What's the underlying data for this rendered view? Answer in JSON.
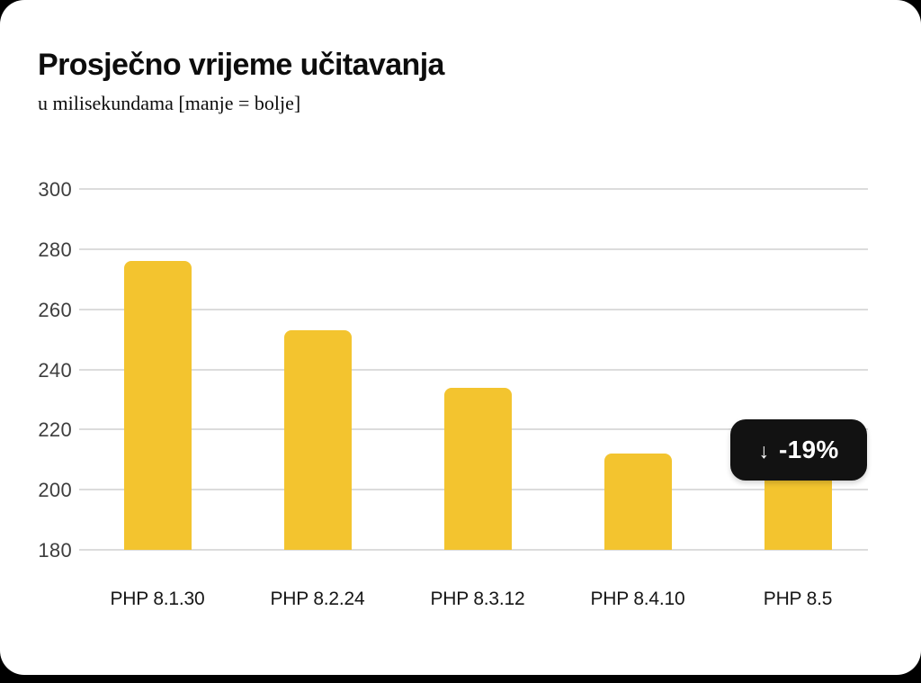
{
  "header": {
    "title": "Prosječno vrijeme učitavanja",
    "subtitle": "u milisekundama [manje = bolje]"
  },
  "badge": {
    "arrow_icon": "↓",
    "label": "-19%"
  },
  "colors": {
    "background": "#000000",
    "card": "#ffffff",
    "bar": "#f3c42f",
    "gridline": "#dcdcdc",
    "tick_text": "#3e3e3e",
    "label_text": "#161616",
    "badge_bg": "#121212",
    "badge_text": "#ffffff"
  },
  "chart_data": {
    "type": "bar",
    "title": "Prosječno vrijeme učitavanja",
    "subtitle": "u milisekundama [manje = bolje]",
    "categories": [
      "PHP 8.1.30",
      "PHP 8.2.24",
      "PHP 8.3.12",
      "PHP 8.4.10",
      "PHP 8.5"
    ],
    "values": [
      276,
      253,
      234,
      212,
      205
    ],
    "unit": "ms",
    "ylim": [
      180,
      300
    ],
    "yticks": [
      180,
      200,
      220,
      240,
      260,
      280,
      300
    ],
    "grid": true,
    "legend": false,
    "annotation": {
      "text": "↓ -19%",
      "target_category": "PHP 8.5",
      "note": "badge overlaps top of last bar"
    }
  }
}
